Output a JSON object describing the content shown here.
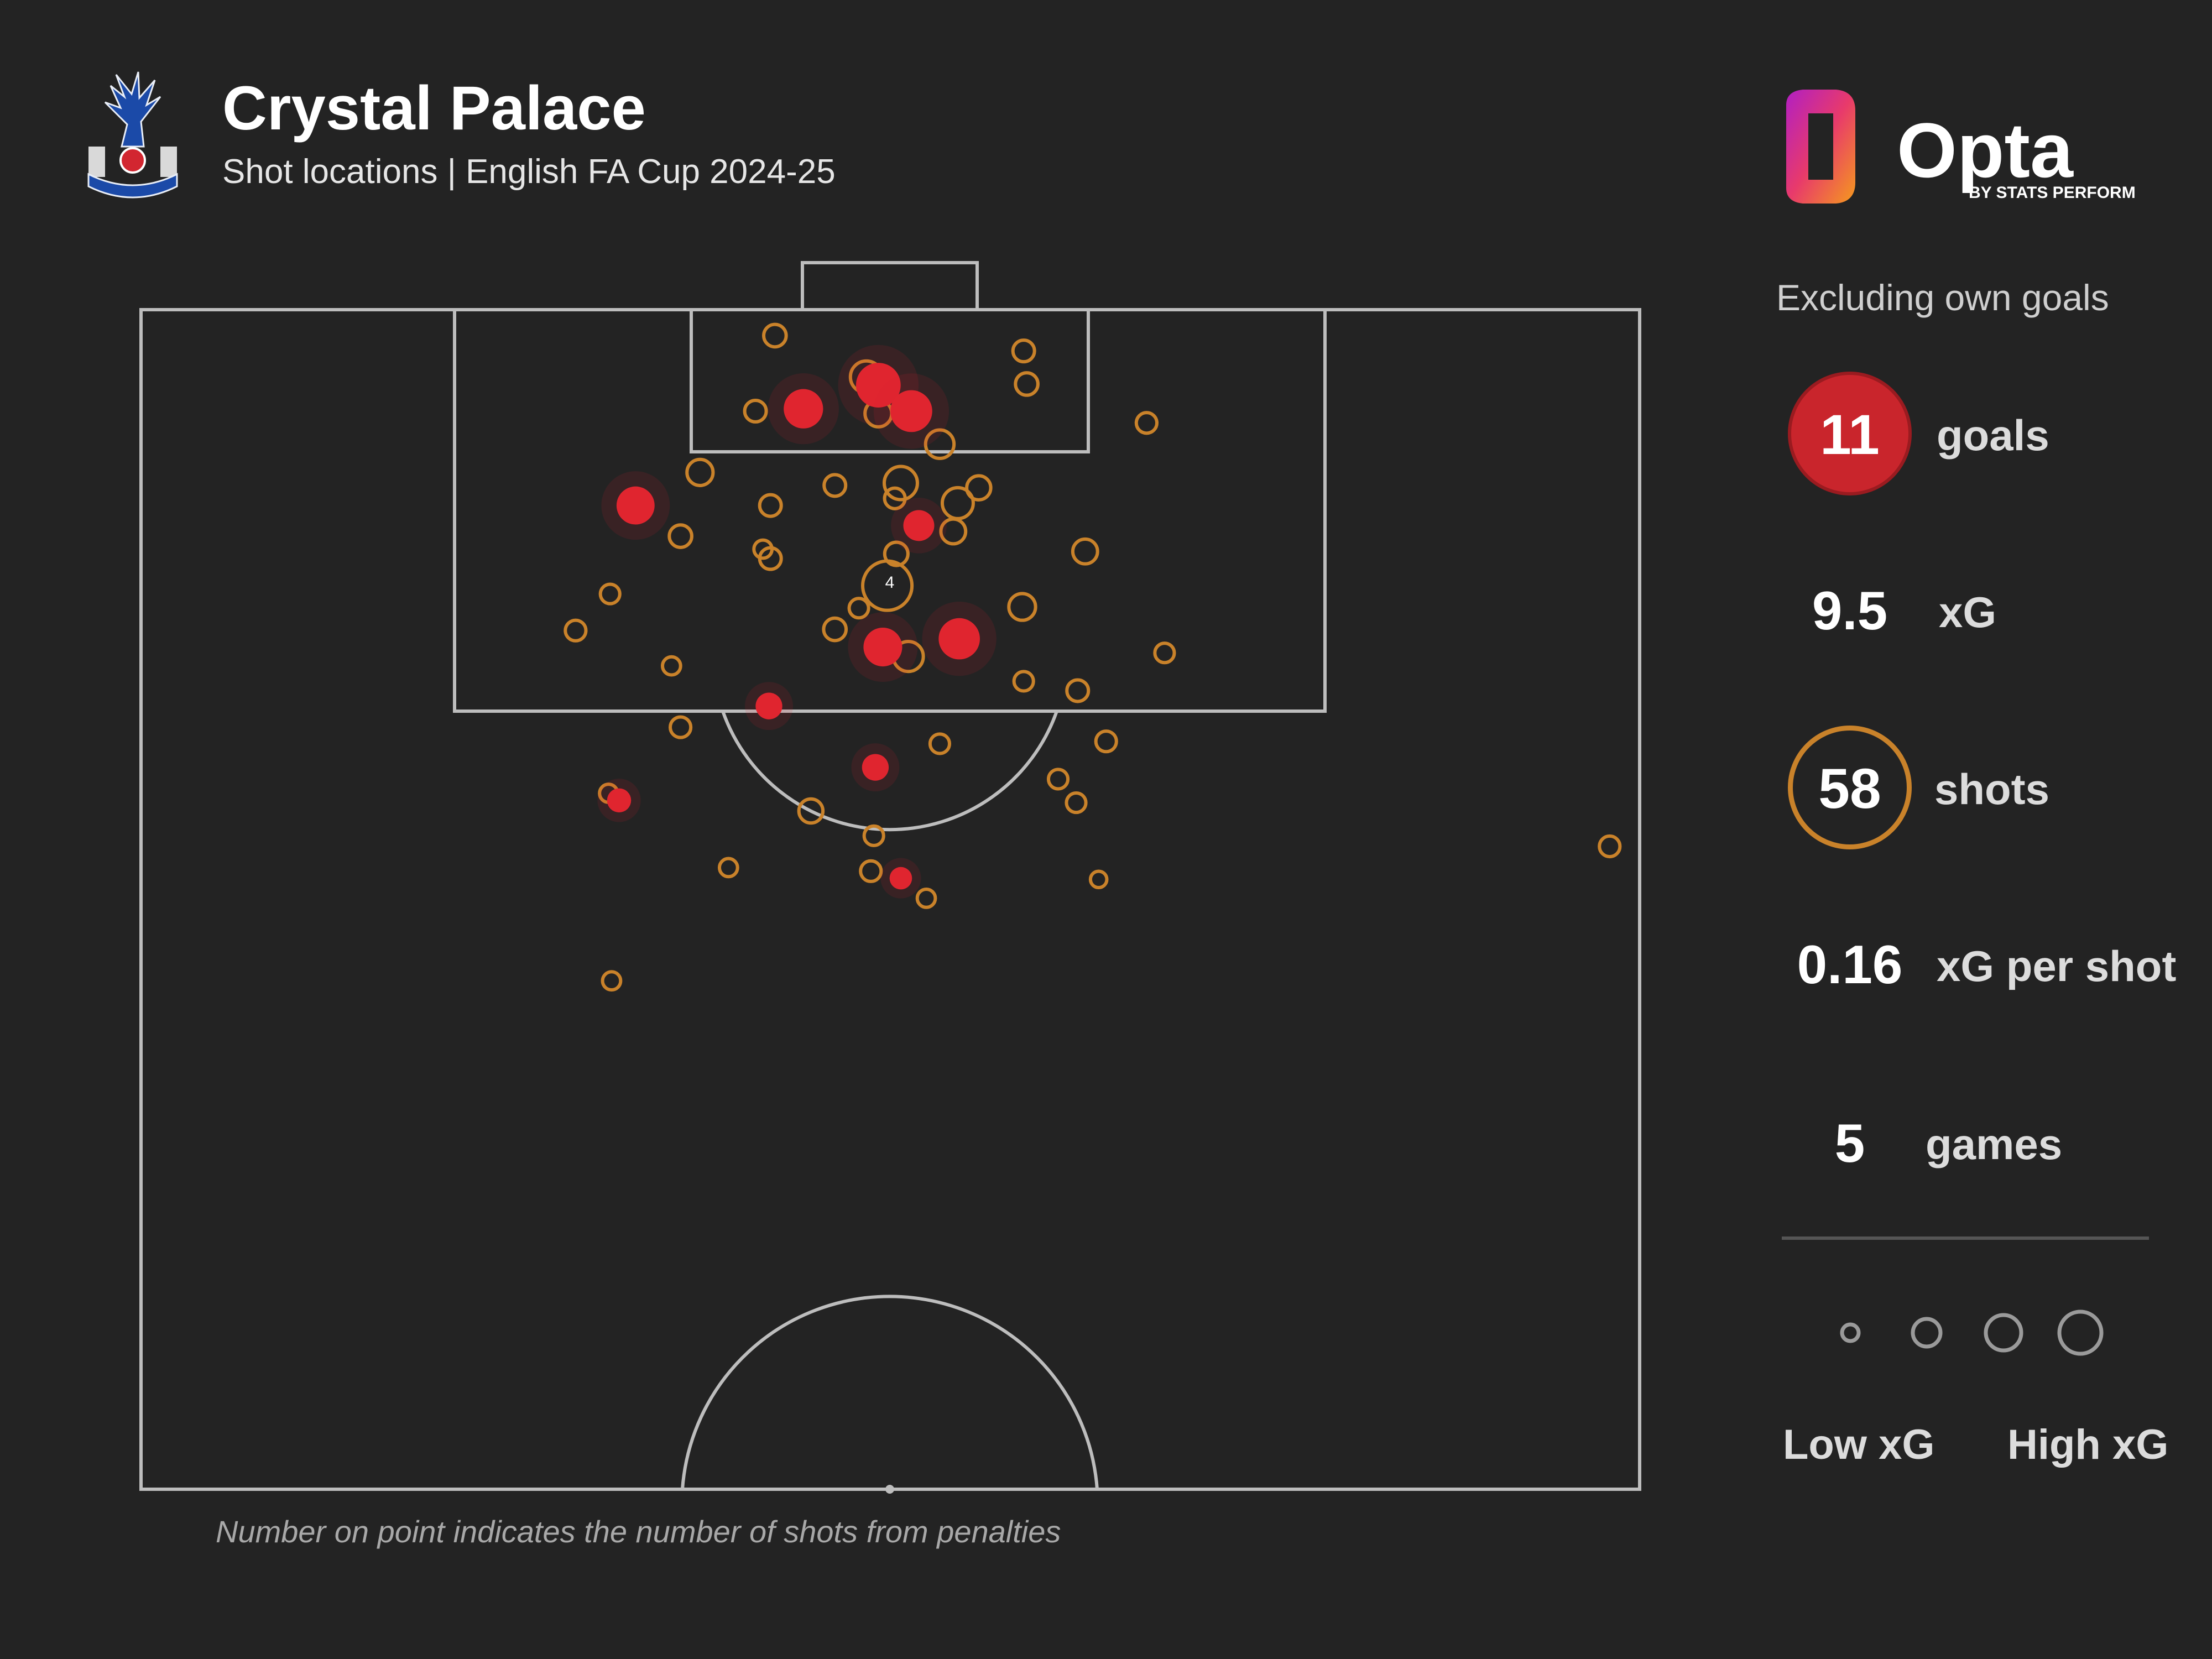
{
  "header": {
    "title": "Crystal Palace",
    "subtitle": "Shot locations | English FA Cup 2024-25"
  },
  "panel": {
    "note": "Excluding own goals",
    "stats": [
      {
        "value": "11",
        "label": "goals"
      },
      {
        "value": "9.5",
        "label": "xG"
      },
      {
        "value": "58",
        "label": "shots"
      },
      {
        "value": "0.16",
        "label": "xG per shot"
      },
      {
        "value": "5",
        "label": "games"
      }
    ],
    "legend": {
      "low": "Low xG",
      "high": "High xG"
    }
  },
  "footnote": "Number on point indicates the number of shots from penalties",
  "colors": {
    "background": "#232323",
    "goal": "#e0252f",
    "shot": "#c9822a",
    "pitch_line": "#bdbdbd"
  },
  "chart_data": {
    "type": "scatter",
    "coordinate_system": "x: percent of pitch width (0=left touchline, 100=right); y: percent of half length from goal line (0=goal line, 100=halfway line)",
    "penalty_marker_label": "4",
    "shots": [
      {
        "x": 42.3,
        "y": 2.2,
        "xg": 0.06,
        "goal": false
      },
      {
        "x": 58.9,
        "y": 3.5,
        "xg": 0.05,
        "goal": false
      },
      {
        "x": 59.1,
        "y": 6.3,
        "xg": 0.06,
        "goal": false
      },
      {
        "x": 48.4,
        "y": 5.7,
        "xg": 0.22,
        "goal": false
      },
      {
        "x": 49.2,
        "y": 6.4,
        "xg": 0.6,
        "goal": true
      },
      {
        "x": 51.4,
        "y": 8.6,
        "xg": 0.5,
        "goal": true
      },
      {
        "x": 44.2,
        "y": 8.4,
        "xg": 0.42,
        "goal": true
      },
      {
        "x": 41.0,
        "y": 8.6,
        "xg": 0.05,
        "goal": false
      },
      {
        "x": 49.2,
        "y": 8.8,
        "xg": 0.12,
        "goal": false
      },
      {
        "x": 53.3,
        "y": 11.4,
        "xg": 0.15,
        "goal": false
      },
      {
        "x": 67.1,
        "y": 9.6,
        "xg": 0.04,
        "goal": false
      },
      {
        "x": 37.3,
        "y": 13.8,
        "xg": 0.11,
        "goal": false
      },
      {
        "x": 50.7,
        "y": 14.7,
        "xg": 0.25,
        "goal": false
      },
      {
        "x": 55.9,
        "y": 15.1,
        "xg": 0.08,
        "goal": false
      },
      {
        "x": 46.3,
        "y": 14.9,
        "xg": 0.05,
        "goal": false
      },
      {
        "x": 54.5,
        "y": 16.4,
        "xg": 0.2,
        "goal": false
      },
      {
        "x": 50.3,
        "y": 16.0,
        "xg": 0.04,
        "goal": false
      },
      {
        "x": 33.0,
        "y": 16.6,
        "xg": 0.38,
        "goal": true
      },
      {
        "x": 42.0,
        "y": 16.6,
        "xg": 0.05,
        "goal": false
      },
      {
        "x": 51.9,
        "y": 18.3,
        "xg": 0.2,
        "goal": true
      },
      {
        "x": 54.2,
        "y": 18.8,
        "xg": 0.09,
        "goal": false
      },
      {
        "x": 36.0,
        "y": 19.2,
        "xg": 0.06,
        "goal": false
      },
      {
        "x": 41.5,
        "y": 20.3,
        "xg": 0.02,
        "goal": false
      },
      {
        "x": 50.4,
        "y": 20.7,
        "xg": 0.07,
        "goal": false
      },
      {
        "x": 42.0,
        "y": 21.1,
        "xg": 0.05,
        "goal": false
      },
      {
        "x": 63.0,
        "y": 20.5,
        "xg": 0.09,
        "goal": false
      },
      {
        "x": 31.3,
        "y": 24.1,
        "xg": 0.03,
        "goal": false
      },
      {
        "x": 47.9,
        "y": 25.3,
        "xg": 0.03,
        "goal": false
      },
      {
        "x": 49.8,
        "y": 23.4,
        "xg": 0.78,
        "goal": false
      },
      {
        "x": 58.8,
        "y": 25.2,
        "xg": 0.12,
        "goal": false
      },
      {
        "x": 29.0,
        "y": 27.2,
        "xg": 0.04,
        "goal": false
      },
      {
        "x": 46.3,
        "y": 27.1,
        "xg": 0.06,
        "goal": false
      },
      {
        "x": 49.5,
        "y": 28.6,
        "xg": 0.4,
        "goal": true
      },
      {
        "x": 54.6,
        "y": 27.9,
        "xg": 0.48,
        "goal": true
      },
      {
        "x": 51.2,
        "y": 29.4,
        "xg": 0.18,
        "goal": false
      },
      {
        "x": 68.3,
        "y": 29.1,
        "xg": 0.03,
        "goal": false
      },
      {
        "x": 35.4,
        "y": 30.2,
        "xg": 0.02,
        "goal": false
      },
      {
        "x": 58.9,
        "y": 31.5,
        "xg": 0.03,
        "goal": false
      },
      {
        "x": 62.5,
        "y": 32.3,
        "xg": 0.05,
        "goal": false
      },
      {
        "x": 41.9,
        "y": 33.6,
        "xg": 0.12,
        "goal": true
      },
      {
        "x": 36.0,
        "y": 35.4,
        "xg": 0.04,
        "goal": false
      },
      {
        "x": 53.3,
        "y": 36.8,
        "xg": 0.03,
        "goal": false
      },
      {
        "x": 64.4,
        "y": 36.6,
        "xg": 0.04,
        "goal": false
      },
      {
        "x": 49.0,
        "y": 38.8,
        "xg": 0.12,
        "goal": true
      },
      {
        "x": 61.2,
        "y": 39.8,
        "xg": 0.03,
        "goal": false
      },
      {
        "x": 31.2,
        "y": 41.0,
        "xg": 0.02,
        "goal": false
      },
      {
        "x": 31.9,
        "y": 41.6,
        "xg": 0.08,
        "goal": true
      },
      {
        "x": 62.4,
        "y": 41.8,
        "xg": 0.03,
        "goal": false
      },
      {
        "x": 44.7,
        "y": 42.5,
        "xg": 0.08,
        "goal": false
      },
      {
        "x": 48.9,
        "y": 44.6,
        "xg": 0.03,
        "goal": false
      },
      {
        "x": 98.0,
        "y": 45.5,
        "xg": 0.04,
        "goal": false
      },
      {
        "x": 39.2,
        "y": 47.3,
        "xg": 0.02,
        "goal": false
      },
      {
        "x": 48.7,
        "y": 47.6,
        "xg": 0.04,
        "goal": false
      },
      {
        "x": 50.7,
        "y": 48.2,
        "xg": 0.06,
        "goal": true
      },
      {
        "x": 52.4,
        "y": 49.9,
        "xg": 0.02,
        "goal": false
      },
      {
        "x": 63.9,
        "y": 48.3,
        "xg": 0.01,
        "goal": false
      },
      {
        "x": 31.4,
        "y": 56.9,
        "xg": 0.02,
        "goal": false
      }
    ]
  }
}
